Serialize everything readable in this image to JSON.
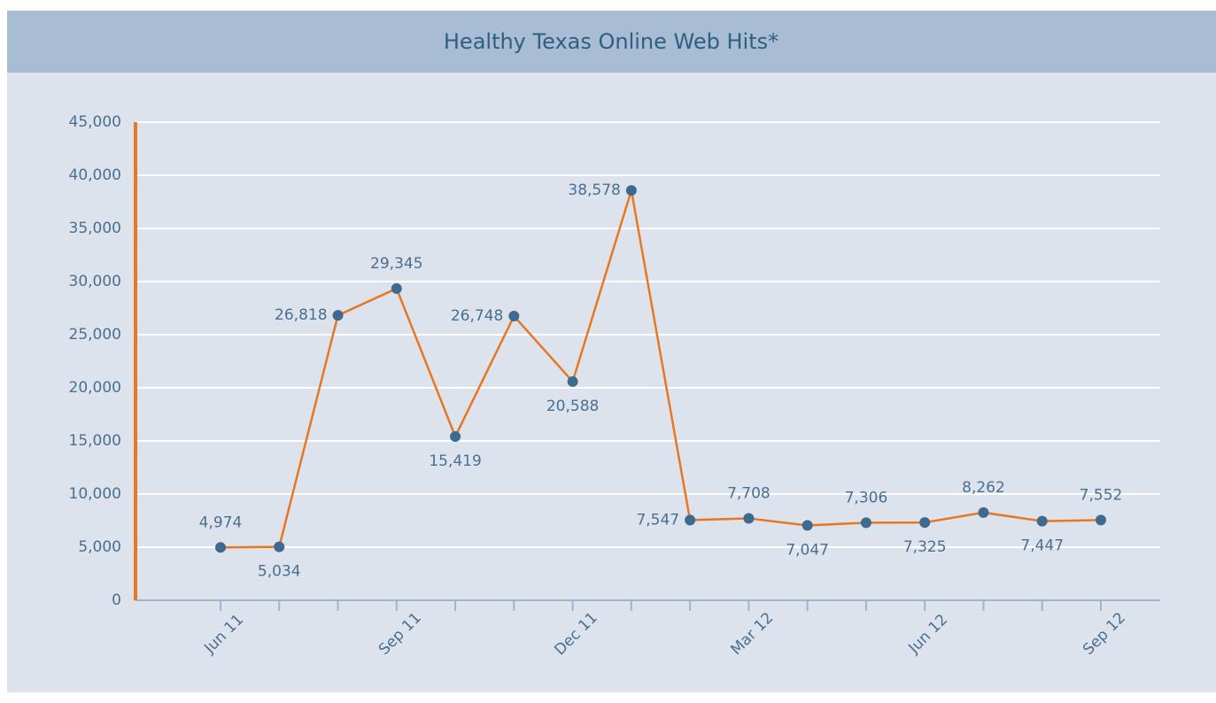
{
  "chart_data": {
    "type": "line",
    "title": "Healthy Texas Online Web Hits*",
    "categories": [
      "Jun 11",
      null,
      null,
      "Sep 11",
      null,
      null,
      "Dec 11",
      null,
      null,
      "Mar 12",
      null,
      null,
      "Jun 12",
      null,
      null,
      "Sep 12"
    ],
    "series": [
      {
        "name": "Web Hits",
        "color": "#e87722",
        "marker_color": "#3d6a8e",
        "values": [
          4974,
          5034,
          26818,
          29345,
          15419,
          26748,
          20588,
          38578,
          7547,
          7708,
          7047,
          7306,
          7325,
          8262,
          7447,
          7552
        ],
        "value_labels": [
          "4,974",
          "5,034",
          "26,818",
          "29,345",
          "15,419",
          "26,748",
          "20,588",
          "38,578",
          "7,547",
          "7,708",
          "7,047",
          "7,306",
          "7,325",
          "8,262",
          "7,447",
          "7,552"
        ]
      }
    ],
    "ylim": [
      0,
      45000
    ],
    "yticks": [
      0,
      {
        "value": 5000,
        "label": "5,000"
      },
      {
        "value": 10000,
        "label": "10,000"
      },
      {
        "value": 15000,
        "label": "15,000"
      },
      {
        "value": 20000,
        "label": "20,000"
      },
      {
        "value": 25000,
        "label": "25,000"
      },
      {
        "value": 30000,
        "label": "30,000"
      },
      {
        "value": 35000,
        "label": "35,000"
      },
      {
        "value": 40000,
        "label": "40,000"
      },
      {
        "value": 45000,
        "label": "45,000"
      }
    ],
    "grid": true
  }
}
